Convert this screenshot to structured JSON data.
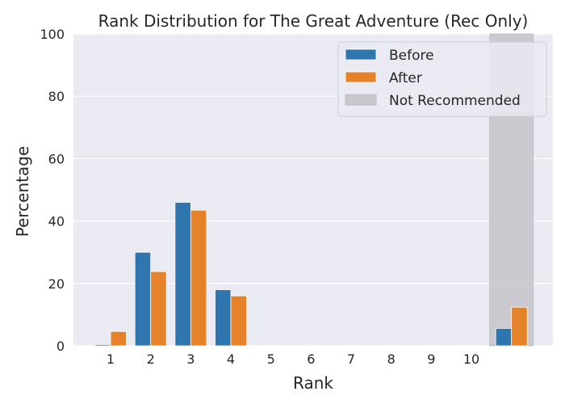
{
  "chart_data": {
    "type": "bar",
    "title": "Rank Distribution for The Great Adventure (Rec Only)",
    "xlabel": "Rank",
    "ylabel": "Percentage",
    "ylim": [
      0,
      100
    ],
    "yticks": [
      0,
      20,
      40,
      60,
      80,
      100
    ],
    "categories": [
      "1",
      "2",
      "3",
      "4",
      "5",
      "6",
      "7",
      "8",
      "9",
      "10",
      ""
    ],
    "series": [
      {
        "name": "Before",
        "color": "#2e76ad",
        "values": [
          0.4,
          30.0,
          46.0,
          18.0,
          0,
          0,
          0,
          0,
          0,
          0,
          5.6
        ]
      },
      {
        "name": "After",
        "color": "#e6832a",
        "values": [
          4.6,
          23.8,
          43.5,
          16.0,
          0,
          0,
          0,
          0,
          0,
          0,
          12.4
        ]
      }
    ],
    "not_recommended": {
      "label": "Not Recommended",
      "color": "#c7c7cc"
    },
    "legend_position": "upper right",
    "grid": true,
    "background": "#eaeaf2"
  }
}
